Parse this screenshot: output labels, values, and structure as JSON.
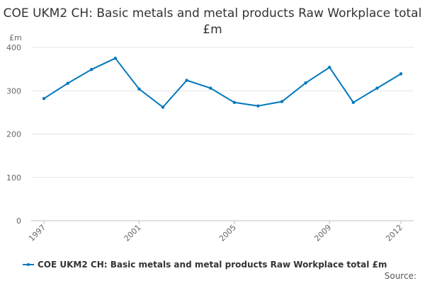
{
  "chart_data": {
    "type": "line",
    "title": "COE UKM2 CH: Basic metals and metal products Raw Workplace total £m",
    "ylabel": "£m",
    "xlabel": "",
    "ylim": [
      0,
      400
    ],
    "yticks": [
      0,
      100,
      200,
      300,
      400
    ],
    "xticks": [
      "1997",
      "2001",
      "2005",
      "2009",
      "2012"
    ],
    "x": [
      1997,
      1998,
      1999,
      2000,
      2001,
      2002,
      2003,
      2004,
      2005,
      2006,
      2007,
      2008,
      2009,
      2010,
      2011,
      2012
    ],
    "series": [
      {
        "name": "COE UKM2 CH: Basic metals and metal products Raw Workplace total £m",
        "color": "#0077bc",
        "values": [
          282,
          317,
          349,
          375,
          304,
          262,
          324,
          306,
          273,
          265,
          275,
          318,
          354,
          273,
          306,
          339
        ]
      }
    ],
    "grid": true,
    "legend_position": "bottom-left"
  },
  "footer": {
    "source": "Source:"
  }
}
